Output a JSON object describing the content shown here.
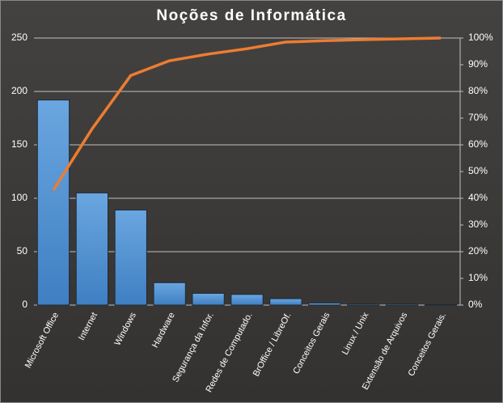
{
  "chart_data": {
    "type": "bar",
    "title": "Noções de Informática",
    "categories": [
      "Microsoft Office",
      "Internet",
      "Windows",
      "Hardware",
      "Segurança da Infor.",
      "Redes de Computado.",
      "BrOffice / LibreOf.",
      "Conceitos Gerais",
      "Linux / Unix",
      "Extensão de Arquivos",
      "Conceitos Gerais."
    ],
    "series": [
      {
        "color": "#5b9bd5",
        "values": [
          192,
          105,
          89,
          21,
          11,
          10,
          6,
          2,
          1,
          1,
          0.5
        ]
      },
      {
        "color": "#ed7d31",
        "axis": "y2",
        "values": [
          43,
          66,
          86,
          91.5,
          94,
          96,
          98.5,
          99,
          99.4,
          99.7,
          100
        ]
      }
    ],
    "ylim": [
      0,
      250
    ],
    "yticks": [
      0,
      50,
      100,
      150,
      200,
      250
    ],
    "y2lim": [
      0,
      100
    ],
    "y2ticks": [
      {
        "value": 0,
        "label": "0%"
      },
      {
        "value": 10,
        "label": "10%"
      },
      {
        "value": 20,
        "label": "20%"
      },
      {
        "value": 30,
        "label": "30%"
      },
      {
        "value": 40,
        "label": "40%"
      },
      {
        "value": 50,
        "label": "50%"
      },
      {
        "value": 60,
        "label": "60%"
      },
      {
        "value": 70,
        "label": "70%"
      },
      {
        "value": 80,
        "label": "80%"
      },
      {
        "value": 90,
        "label": "90%"
      },
      {
        "value": 100,
        "label": "100%"
      }
    ],
    "grid": true
  }
}
